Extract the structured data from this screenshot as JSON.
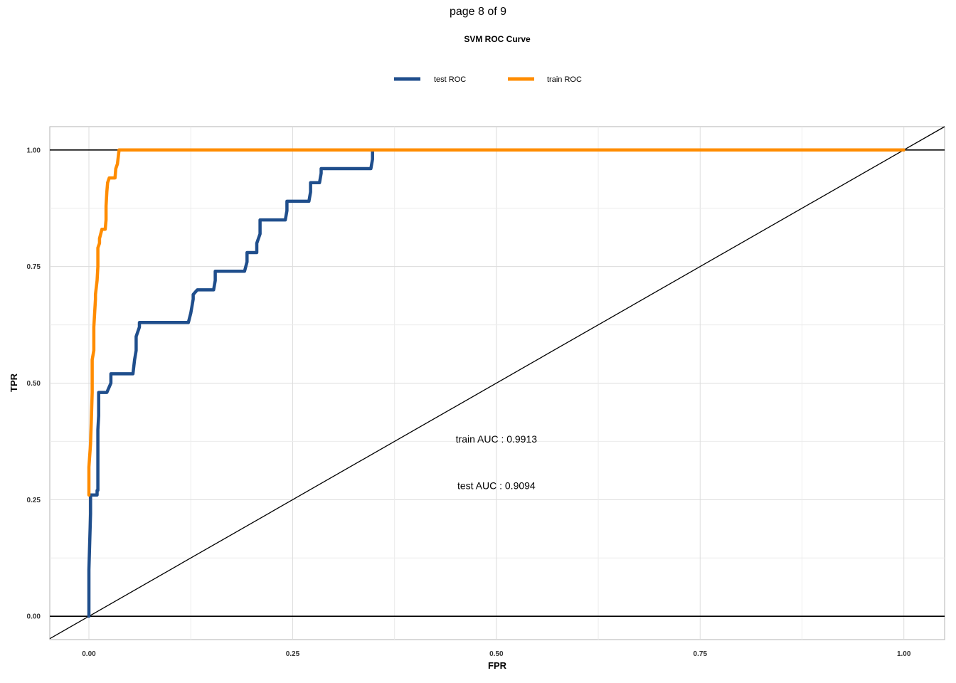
{
  "page": {
    "label": "page 8 of 9"
  },
  "chart_data": {
    "type": "line",
    "title": "SVM ROC Curve",
    "xlabel": "FPR",
    "ylabel": "TPR",
    "xlim": [
      -0.048,
      1.05
    ],
    "ylim": [
      -0.05,
      1.05
    ],
    "xticks": [
      "0.00",
      "0.25",
      "0.50",
      "0.75",
      "1.00"
    ],
    "yticks": [
      "0.00",
      "0.25",
      "0.50",
      "0.75",
      "1.00"
    ],
    "grid": true,
    "legend_position": "top",
    "series": [
      {
        "name": "test ROC",
        "color": "#1f4e8c",
        "x": [
          0,
          0,
          0.002,
          0.002,
          0.01,
          0.01,
          0.011,
          0.011,
          0.012,
          0.012,
          0.022,
          0.027,
          0.027,
          0.054,
          0.056,
          0.058,
          0.058,
          0.062,
          0.062,
          0.122,
          0.125,
          0.128,
          0.128,
          0.133,
          0.133,
          0.153,
          0.155,
          0.155,
          0.191,
          0.194,
          0.194,
          0.206,
          0.206,
          0.21,
          0.21,
          0.241,
          0.243,
          0.243,
          0.27,
          0.272,
          0.272,
          0.283,
          0.285,
          0.285,
          0.346,
          0.348,
          0.348,
          1.0
        ],
        "y": [
          0,
          0.1,
          0.22,
          0.26,
          0.26,
          0.27,
          0.27,
          0.4,
          0.43,
          0.48,
          0.48,
          0.5,
          0.52,
          0.52,
          0.55,
          0.57,
          0.6,
          0.62,
          0.63,
          0.63,
          0.65,
          0.68,
          0.69,
          0.7,
          0.7,
          0.7,
          0.72,
          0.74,
          0.74,
          0.76,
          0.78,
          0.78,
          0.8,
          0.82,
          0.85,
          0.85,
          0.87,
          0.89,
          0.89,
          0.91,
          0.93,
          0.93,
          0.95,
          0.96,
          0.96,
          0.98,
          1.0,
          1.0
        ]
      },
      {
        "name": "train ROC",
        "color": "#ff8c00",
        "x": [
          0,
          0,
          0.002,
          0.003,
          0.004,
          0.004,
          0.006,
          0.006,
          0.008,
          0.008,
          0.01,
          0.011,
          0.011,
          0.013,
          0.013,
          0.016,
          0.02,
          0.021,
          0.021,
          0.022,
          0.023,
          0.025,
          0.026,
          0.032,
          0.033,
          0.035,
          0.037,
          1.0
        ],
        "y": [
          0.26,
          0.32,
          0.37,
          0.42,
          0.48,
          0.55,
          0.57,
          0.62,
          0.68,
          0.69,
          0.72,
          0.75,
          0.79,
          0.8,
          0.81,
          0.83,
          0.83,
          0.85,
          0.88,
          0.91,
          0.93,
          0.94,
          0.94,
          0.94,
          0.96,
          0.97,
          1.0,
          1.0
        ]
      }
    ],
    "annotations": [
      {
        "text": "train AUC :  0.9913",
        "x": 0.5,
        "y": 0.38
      },
      {
        "text": "test AUC :  0.9094",
        "x": 0.5,
        "y": 0.28
      }
    ]
  }
}
